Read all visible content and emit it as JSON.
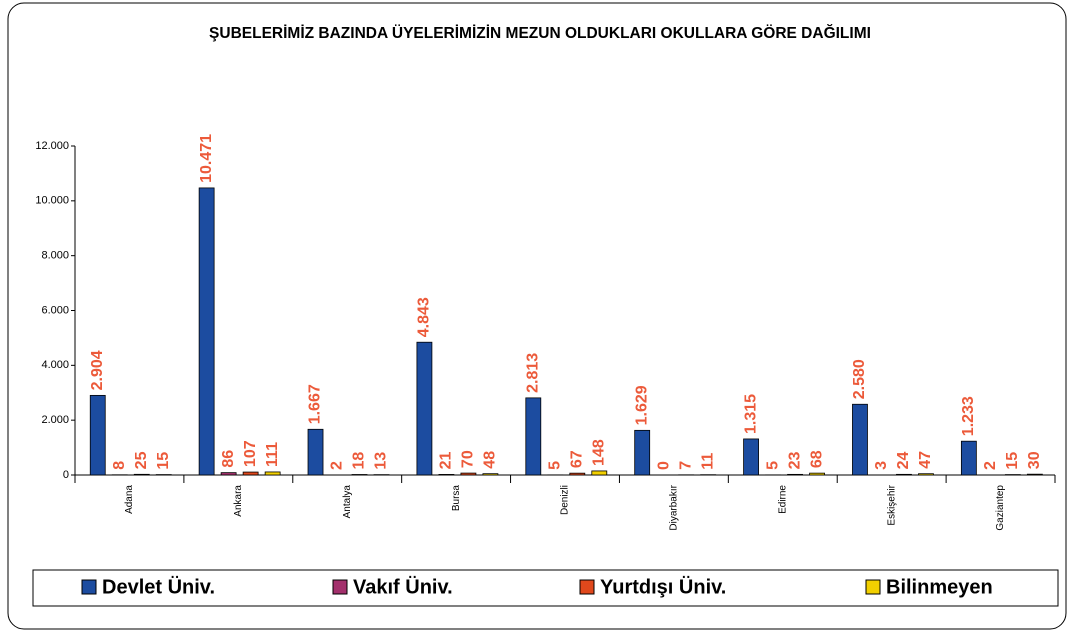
{
  "chart_data": {
    "type": "bar",
    "title": "ŞUBELERİMİZ BAZINDA ÜYELERİMİZİN MEZUN OLDUKLARI OKULLARA GÖRE DAĞILIMI",
    "categories": [
      "Adana",
      "Ankara",
      "Antalya",
      "Bursa",
      "Denizli",
      "Diyarbakır",
      "Edirne",
      "Eskişehir",
      "Gaziantep"
    ],
    "series": [
      {
        "name": "Devlet Üniv.",
        "color": "#1c4ca0",
        "values": [
          2904,
          10471,
          1667,
          4843,
          2813,
          1629,
          1315,
          2580,
          1233
        ],
        "value_labels": [
          "2.904",
          "10.471",
          "1.667",
          "4.843",
          "2.813",
          "1.629",
          "1.315",
          "2.580",
          "1.233"
        ]
      },
      {
        "name": "Vakıf Üniv.",
        "color": "#a3306c",
        "values": [
          8,
          86,
          2,
          21,
          5,
          0,
          5,
          3,
          2
        ]
      },
      {
        "name": "Yurtdışı Üniv.",
        "color": "#e0481c",
        "values": [
          25,
          107,
          18,
          70,
          67,
          7,
          23,
          24,
          15
        ]
      },
      {
        "name": "Bilinmeyen",
        "color": "#f2d000",
        "values": [
          15,
          111,
          13,
          48,
          148,
          11,
          68,
          47,
          30
        ]
      }
    ],
    "label_color": "#ec5a3a",
    "ylim": [
      0,
      12000
    ],
    "yticks": [
      0,
      {
        "value": 2000,
        "label": "2.000"
      },
      {
        "value": 4000,
        "label": "4.000"
      },
      {
        "value": 6000,
        "label": "6.000"
      },
      {
        "value": 8000,
        "label": "8.000"
      },
      {
        "value": 10000,
        "label": "10.000"
      },
      {
        "value": 12000,
        "label": "12.000"
      }
    ],
    "grid": false,
    "legend": "bottom"
  }
}
